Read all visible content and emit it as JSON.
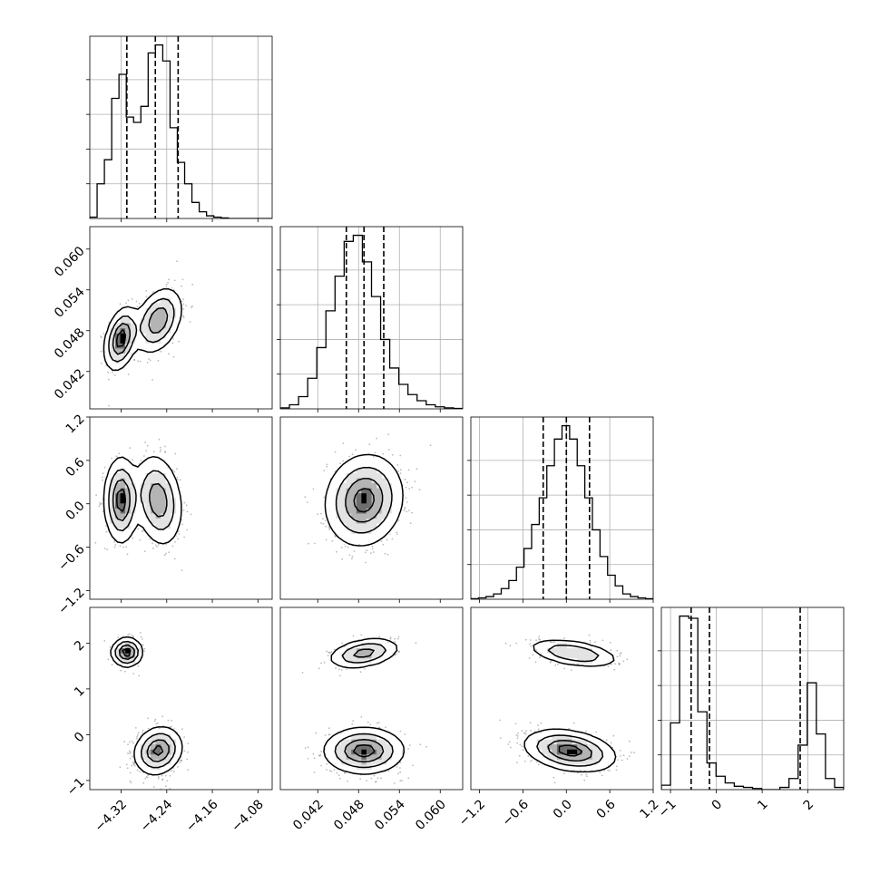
{
  "chart_data": {
    "type": "corner",
    "parameters": [
      {
        "range": [
          -4.375,
          -4.055
        ],
        "ticks": [
          -4.32,
          -4.24,
          -4.16,
          -4.08
        ],
        "tick_labels": [
          "−4.32",
          "−4.24",
          "−4.16",
          "−4.08"
        ],
        "quantiles": [
          -4.31,
          -4.26,
          -4.22
        ],
        "histogram": [
          0.005,
          0.13,
          0.22,
          0.45,
          0.54,
          0.38,
          0.36,
          0.42,
          0.62,
          0.65,
          0.59,
          0.34,
          0.21,
          0.13,
          0.06,
          0.025,
          0.01,
          0.005,
          0.002,
          0,
          0,
          0,
          0,
          0,
          0
        ]
      },
      {
        "range": [
          0.0365,
          0.0633
        ],
        "ticks": [
          0.042,
          0.048,
          0.054,
          0.06
        ],
        "tick_labels": [
          "0.042",
          "0.048",
          "0.054",
          "0.060"
        ],
        "quantiles": [
          0.0462,
          0.0488,
          0.0517
        ],
        "histogram": [
          0.005,
          0.02,
          0.06,
          0.15,
          0.3,
          0.48,
          0.65,
          0.82,
          0.85,
          0.72,
          0.55,
          0.34,
          0.2,
          0.12,
          0.07,
          0.04,
          0.02,
          0.01,
          0.005,
          0.002
        ]
      },
      {
        "range": [
          -1.32,
          1.2
        ],
        "ticks": [
          -1.2,
          -0.6,
          0.0,
          0.6,
          1.2
        ],
        "tick_labels": [
          "−1.2",
          "−0.6",
          "0.0",
          "0.6",
          "1.2"
        ],
        "quantiles": [
          -0.32,
          0.0,
          0.32
        ],
        "histogram": [
          0.002,
          0.005,
          0.01,
          0.02,
          0.04,
          0.07,
          0.12,
          0.19,
          0.28,
          0.38,
          0.5,
          0.6,
          0.65,
          0.6,
          0.5,
          0.38,
          0.26,
          0.16,
          0.09,
          0.05,
          0.02,
          0.01,
          0.005,
          0.002
        ]
      },
      {
        "range": [
          -1.2,
          2.78
        ],
        "ticks": [
          -1,
          0,
          1,
          2
        ],
        "tick_labels": [
          "−1",
          "0",
          "1",
          "2"
        ],
        "quantiles": [
          -0.55,
          -0.15,
          1.83
        ],
        "histogram": [
          0.02,
          0.3,
          0.78,
          0.77,
          0.35,
          0.12,
          0.06,
          0.03,
          0.015,
          0.01,
          0.005,
          0,
          0,
          0.01,
          0.05,
          0.2,
          0.48,
          0.25,
          0.05,
          0.01
        ]
      }
    ],
    "joint_modes": {
      "1_0": [
        {
          "mx": -4.32,
          "my": 0.0468,
          "sx": 0.014,
          "sy": 0.0022,
          "w": 0.45,
          "rho": 0.35
        },
        {
          "mx": -4.255,
          "my": 0.0495,
          "sx": 0.02,
          "sy": 0.0023,
          "w": 0.55,
          "rho": 0.35
        }
      ],
      "2_0": [
        {
          "mx": -4.32,
          "my": 0.05,
          "sx": 0.014,
          "sy": 0.28,
          "w": 0.45,
          "rho": 0.0
        },
        {
          "mx": -4.255,
          "my": 0.05,
          "sx": 0.02,
          "sy": 0.3,
          "w": 0.55,
          "rho": -0.2
        }
      ],
      "3_0": [
        {
          "mx": -4.31,
          "my": 1.8,
          "sx": 0.013,
          "sy": 0.15,
          "w": 0.3,
          "rho": 0.0
        },
        {
          "mx": -4.255,
          "my": -0.35,
          "sx": 0.02,
          "sy": 0.25,
          "w": 0.7,
          "rho": 0.15
        }
      ],
      "2_1": [
        {
          "mx": 0.0488,
          "my": 0.05,
          "sx": 0.0027,
          "sy": 0.3,
          "w": 1.0,
          "rho": 0.1
        }
      ],
      "3_1": [
        {
          "mx": 0.0488,
          "my": 1.78,
          "sx": 0.0025,
          "sy": 0.16,
          "w": 0.3,
          "rho": 0.35
        },
        {
          "mx": 0.0488,
          "my": -0.35,
          "sx": 0.0028,
          "sy": 0.24,
          "w": 0.7,
          "rho": 0.0
        }
      ],
      "3_2": [
        {
          "mx": 0.1,
          "my": 1.78,
          "sx": 0.3,
          "sy": 0.15,
          "w": 0.3,
          "rho": -0.45
        },
        {
          "mx": 0.05,
          "my": -0.35,
          "sx": 0.3,
          "sy": 0.22,
          "w": 0.7,
          "rho": -0.3
        }
      ]
    },
    "grid": true,
    "contours": true,
    "scatter": true
  }
}
